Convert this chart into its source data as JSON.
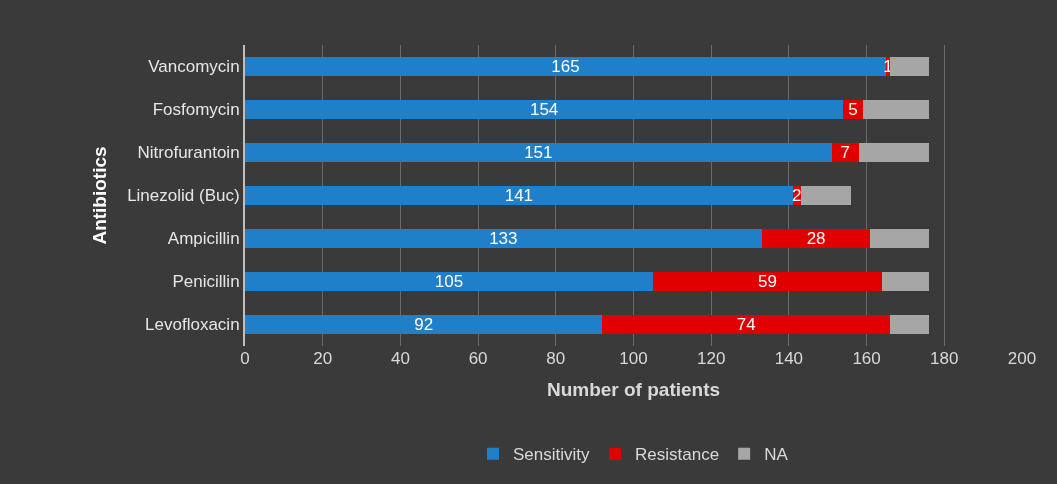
{
  "chart_data": {
    "type": "bar",
    "orientation": "horizontal",
    "stacked": true,
    "xlabel": "Number of patients",
    "ylabel": "Antibiotics",
    "categories": [
      "Vancomycin",
      "Fosfomycin",
      "Nitrofurantoin",
      "Linezolid (Buc)",
      "Ampicillin",
      "Penicillin",
      "Levofloxacin"
    ],
    "series": [
      {
        "name": "Sensitivity",
        "color": "#1f7fc8",
        "values": [
          165,
          154,
          151,
          141,
          133,
          105,
          92
        ],
        "value_labels": [
          "165",
          "154",
          "151",
          "141",
          "133",
          "105",
          "92"
        ]
      },
      {
        "name": "Resistance",
        "color": "#e00000",
        "values": [
          1,
          5,
          7,
          2,
          28,
          59,
          74
        ],
        "value_labels": [
          "1",
          "5",
          "7",
          "2",
          "28",
          "59",
          "74"
        ]
      },
      {
        "name": "NA",
        "color": "#a6a6a6",
        "values": [
          10,
          17,
          18,
          13,
          15,
          12,
          10
        ]
      }
    ],
    "xlim": [
      0,
      200
    ],
    "xticks": [
      0,
      20,
      40,
      60,
      80,
      100,
      120,
      140,
      160,
      180,
      200
    ],
    "grid": "x",
    "legend": "bottom"
  }
}
